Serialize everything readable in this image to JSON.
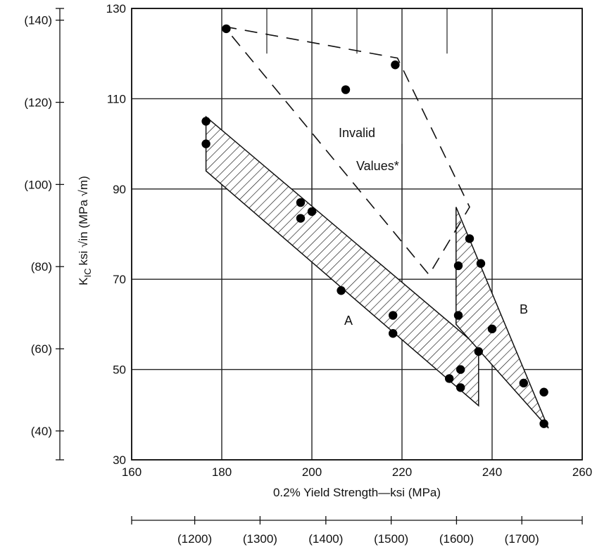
{
  "chart_data": {
    "type": "scatter",
    "xlabel": "0.2% Yield Strength—ksi (MPa)",
    "ylabel": "K",
    "ylabel_sub": "IC",
    "ylabel_rest": "ksi √in (MPa √m)",
    "xlim": [
      160,
      260
    ],
    "ylim": [
      30,
      130
    ],
    "grid": true,
    "x_ticks": [
      "160",
      "180",
      "200",
      "220",
      "240",
      "260"
    ],
    "y_ticks": [
      "30",
      "50",
      "70",
      "90",
      "110",
      "130"
    ],
    "mpa_ticks": [
      {
        "label": "(1200)",
        "ksi": 174.0
      },
      {
        "label": "(1300)",
        "ksi": 188.5
      },
      {
        "label": "(1400)",
        "ksi": 203.1
      },
      {
        "label": "(1500)",
        "ksi": 217.6
      },
      {
        "label": "(1600)",
        "ksi": 232.1
      },
      {
        "label": "(1700)",
        "ksi": 246.6
      }
    ],
    "si_ticks": [
      {
        "label": "(40)",
        "ksi": 36.4
      },
      {
        "label": "(60)",
        "ksi": 54.6
      },
      {
        "label": "(80)",
        "ksi": 72.8
      },
      {
        "label": "(100)",
        "ksi": 91.0
      },
      {
        "label": "(120)",
        "ksi": 109.2
      },
      {
        "label": "(140)",
        "ksi": 127.4
      }
    ],
    "points": [
      {
        "x": 176.5,
        "y": 105.0
      },
      {
        "x": 176.5,
        "y": 100.0
      },
      {
        "x": 181.0,
        "y": 125.5
      },
      {
        "x": 218.5,
        "y": 117.5
      },
      {
        "x": 207.5,
        "y": 112.0
      },
      {
        "x": 197.5,
        "y": 87.0
      },
      {
        "x": 197.5,
        "y": 83.5
      },
      {
        "x": 200.0,
        "y": 85.0
      },
      {
        "x": 206.5,
        "y": 67.5
      },
      {
        "x": 218.0,
        "y": 62.0
      },
      {
        "x": 218.0,
        "y": 58.0
      },
      {
        "x": 230.5,
        "y": 48.0
      },
      {
        "x": 233.0,
        "y": 50.0
      },
      {
        "x": 233.0,
        "y": 46.0
      },
      {
        "x": 237.0,
        "y": 54.0
      },
      {
        "x": 232.5,
        "y": 73.0
      },
      {
        "x": 235.0,
        "y": 79.0
      },
      {
        "x": 237.5,
        "y": 73.5
      },
      {
        "x": 232.5,
        "y": 62.0
      },
      {
        "x": 240.0,
        "y": 59.0
      },
      {
        "x": 247.0,
        "y": 47.0
      },
      {
        "x": 251.5,
        "y": 45.0
      },
      {
        "x": 251.5,
        "y": 38.0
      }
    ],
    "band_A": [
      [
        176.5,
        106.0
      ],
      [
        237.0,
        55.0
      ],
      [
        237.0,
        42.0
      ],
      [
        176.5,
        94.0
      ]
    ],
    "band_B": [
      [
        232.0,
        86.0
      ],
      [
        252.5,
        37.0
      ],
      [
        232.0,
        60.0
      ]
    ],
    "invalid_region": [
      [
        180.5,
        126.0
      ],
      [
        219.0,
        119.0
      ],
      [
        235.0,
        86.0
      ],
      [
        226.0,
        71.0
      ],
      [
        180.5,
        126.0
      ]
    ],
    "annotations": {
      "label_A": "A",
      "label_B": "B",
      "invalid_line1": "Invalid",
      "invalid_line2": "Values*"
    }
  }
}
